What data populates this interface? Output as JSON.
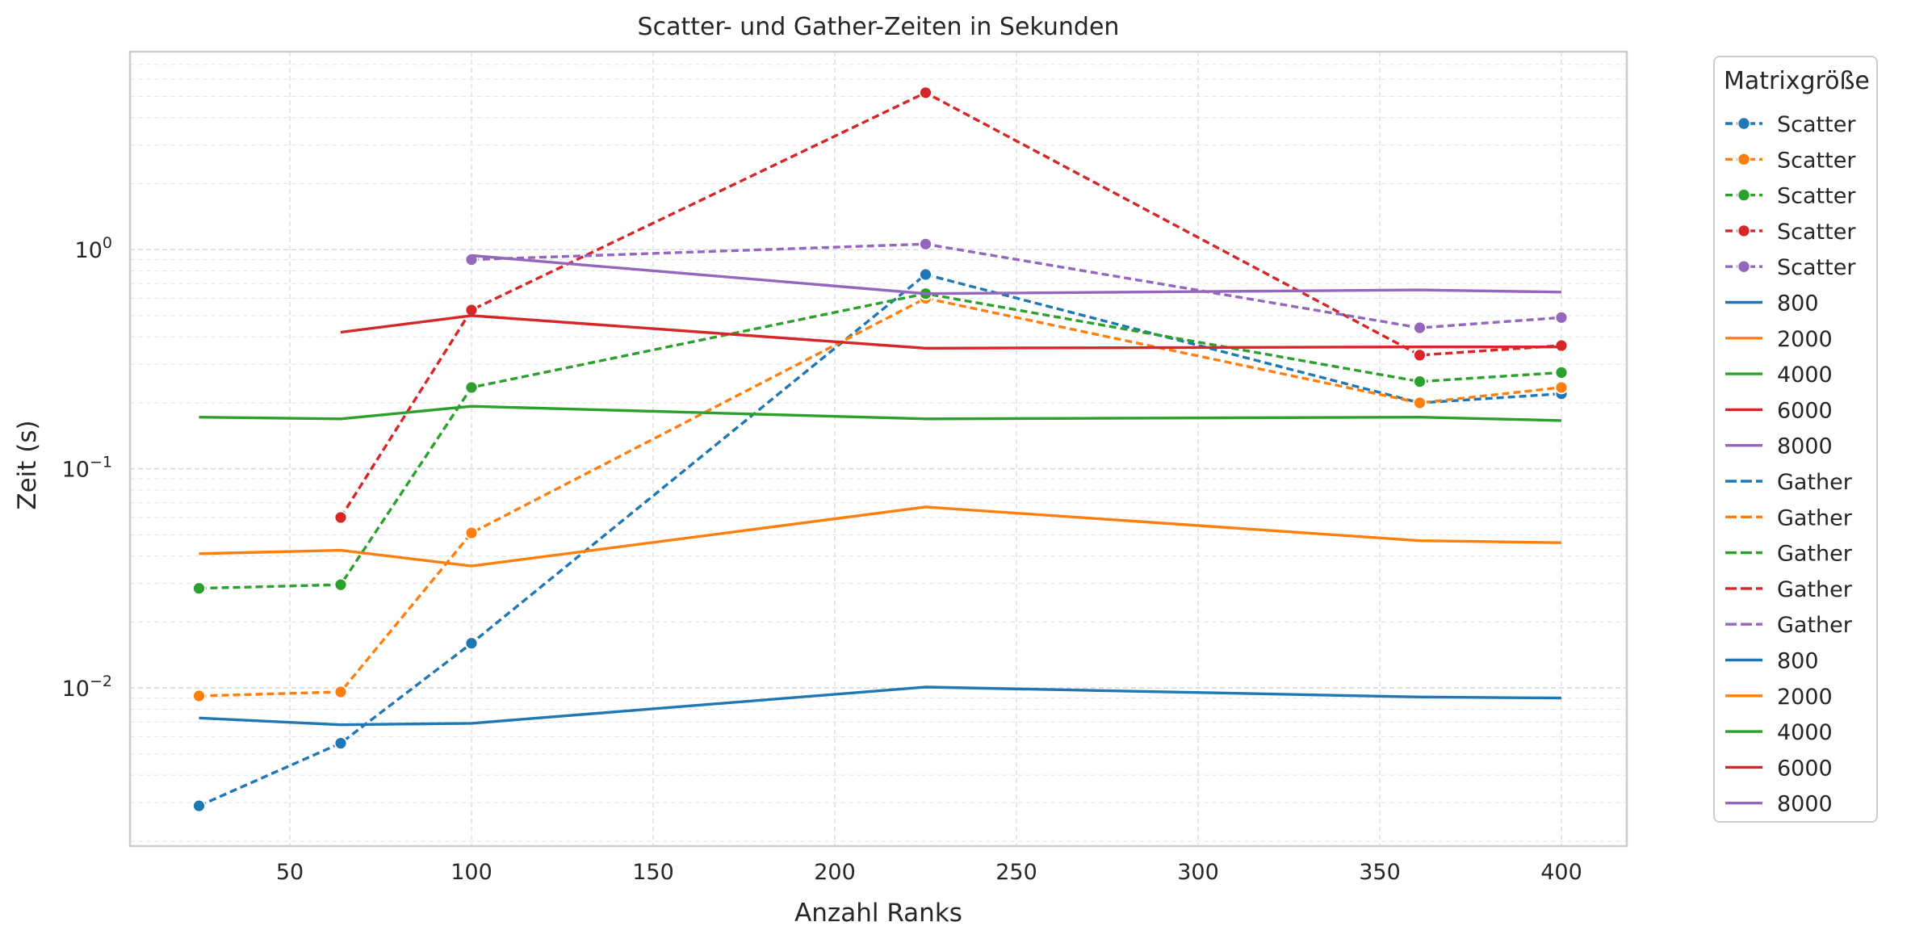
{
  "chart_data": {
    "type": "line",
    "title": "Scatter- und Gather-Zeiten in Sekunden",
    "xlabel": "Anzahl Ranks",
    "ylabel": "Zeit (s)",
    "xlim": [
      6,
      418
    ],
    "ylim": [
      0.0019,
      8.0
    ],
    "yscale": "log",
    "grid": true,
    "x_ticks": [
      50,
      100,
      150,
      200,
      250,
      300,
      350,
      400
    ],
    "x_tick_labels": [
      "50",
      "100",
      "150",
      "200",
      "250",
      "300",
      "350",
      "400"
    ],
    "y_ticks": [
      0.01,
      0.1,
      1
    ],
    "y_tick_labels": [
      {
        "base": "10",
        "exp": "−2"
      },
      {
        "base": "10",
        "exp": "−1"
      },
      {
        "base": "10",
        "exp": "0"
      }
    ],
    "legend": {
      "title": "Matrixgröße",
      "placement": "outside-right",
      "entries": [
        {
          "label": "Scatter",
          "color": "#1f77b4",
          "style": "dashed",
          "marker": true
        },
        {
          "label": "Scatter",
          "color": "#ff7f0e",
          "style": "dashed",
          "marker": true
        },
        {
          "label": "Scatter",
          "color": "#2ca02c",
          "style": "dashed",
          "marker": true
        },
        {
          "label": "Scatter",
          "color": "#d62728",
          "style": "dashed",
          "marker": true
        },
        {
          "label": "Scatter",
          "color": "#9467bd",
          "style": "dashed",
          "marker": true
        },
        {
          "label": "800",
          "color": "#1f77b4",
          "style": "solid",
          "marker": false
        },
        {
          "label": "2000",
          "color": "#ff7f0e",
          "style": "solid",
          "marker": false
        },
        {
          "label": "4000",
          "color": "#2ca02c",
          "style": "solid",
          "marker": false
        },
        {
          "label": "6000",
          "color": "#d62728",
          "style": "solid",
          "marker": false
        },
        {
          "label": "8000",
          "color": "#9467bd",
          "style": "solid",
          "marker": false
        },
        {
          "label": "Gather",
          "color": "#1f77b4",
          "style": "longdash",
          "marker": false
        },
        {
          "label": "Gather",
          "color": "#ff7f0e",
          "style": "longdash",
          "marker": false
        },
        {
          "label": "Gather",
          "color": "#2ca02c",
          "style": "longdash",
          "marker": false
        },
        {
          "label": "Gather",
          "color": "#d62728",
          "style": "longdash",
          "marker": false
        },
        {
          "label": "Gather",
          "color": "#9467bd",
          "style": "longdash",
          "marker": false
        },
        {
          "label": "800",
          "color": "#1f77b4",
          "style": "solid",
          "marker": false
        },
        {
          "label": "2000",
          "color": "#ff7f0e",
          "style": "solid",
          "marker": false
        },
        {
          "label": "4000",
          "color": "#2ca02c",
          "style": "solid",
          "marker": false
        },
        {
          "label": "6000",
          "color": "#d62728",
          "style": "solid",
          "marker": false
        },
        {
          "label": "8000",
          "color": "#9467bd",
          "style": "solid",
          "marker": false
        }
      ]
    },
    "series": [
      {
        "group": "Scatter",
        "matrix": "800",
        "color": "#1f77b4",
        "style": "dashed",
        "marker": true,
        "points": [
          [
            25,
            0.0029
          ],
          [
            64,
            0.0056
          ],
          [
            100,
            0.016
          ],
          [
            225,
            0.77
          ],
          [
            361,
            0.2
          ],
          [
            400,
            0.22
          ]
        ]
      },
      {
        "group": "Scatter",
        "matrix": "2000",
        "color": "#ff7f0e",
        "style": "dashed",
        "marker": true,
        "points": [
          [
            25,
            0.0092
          ],
          [
            64,
            0.0096
          ],
          [
            100,
            0.051
          ],
          [
            225,
            0.6
          ],
          [
            361,
            0.2
          ],
          [
            400,
            0.235
          ]
        ]
      },
      {
        "group": "Scatter",
        "matrix": "4000",
        "color": "#2ca02c",
        "style": "dashed",
        "marker": true,
        "points": [
          [
            25,
            0.0285
          ],
          [
            64,
            0.0296
          ],
          [
            100,
            0.235
          ],
          [
            225,
            0.63
          ],
          [
            361,
            0.25
          ],
          [
            400,
            0.275
          ]
        ]
      },
      {
        "group": "Scatter",
        "matrix": "6000",
        "color": "#d62728",
        "style": "dashed",
        "marker": true,
        "points": [
          [
            64,
            0.06
          ],
          [
            100,
            0.53
          ],
          [
            225,
            5.2
          ],
          [
            361,
            0.33
          ],
          [
            400,
            0.365
          ]
        ]
      },
      {
        "group": "Scatter",
        "matrix": "8000",
        "color": "#9467bd",
        "style": "dashed",
        "marker": true,
        "points": [
          [
            100,
            0.9
          ],
          [
            225,
            1.06
          ],
          [
            361,
            0.44
          ],
          [
            400,
            0.49
          ]
        ]
      },
      {
        "group": "Gather",
        "matrix": "800",
        "color": "#1f77b4",
        "style": "solid",
        "marker": false,
        "points": [
          [
            25,
            0.0073
          ],
          [
            64,
            0.0068
          ],
          [
            100,
            0.0069
          ],
          [
            225,
            0.0101
          ],
          [
            361,
            0.0091
          ],
          [
            400,
            0.009
          ]
        ]
      },
      {
        "group": "Gather",
        "matrix": "2000",
        "color": "#ff7f0e",
        "style": "solid",
        "marker": false,
        "points": [
          [
            25,
            0.041
          ],
          [
            64,
            0.0425
          ],
          [
            100,
            0.036
          ],
          [
            225,
            0.067
          ],
          [
            361,
            0.047
          ],
          [
            400,
            0.046
          ]
        ]
      },
      {
        "group": "Gather",
        "matrix": "4000",
        "color": "#2ca02c",
        "style": "solid",
        "marker": false,
        "points": [
          [
            25,
            0.172
          ],
          [
            64,
            0.169
          ],
          [
            100,
            0.193
          ],
          [
            225,
            0.169
          ],
          [
            361,
            0.172
          ],
          [
            400,
            0.166
          ]
        ]
      },
      {
        "group": "Gather",
        "matrix": "6000",
        "color": "#d62728",
        "style": "solid",
        "marker": false,
        "points": [
          [
            64,
            0.42
          ],
          [
            100,
            0.5
          ],
          [
            225,
            0.355
          ],
          [
            361,
            0.36
          ],
          [
            400,
            0.36
          ]
        ]
      },
      {
        "group": "Gather",
        "matrix": "8000",
        "color": "#9467bd",
        "style": "solid",
        "marker": false,
        "points": [
          [
            100,
            0.94
          ],
          [
            225,
            0.63
          ],
          [
            361,
            0.655
          ],
          [
            400,
            0.64
          ]
        ]
      }
    ]
  }
}
